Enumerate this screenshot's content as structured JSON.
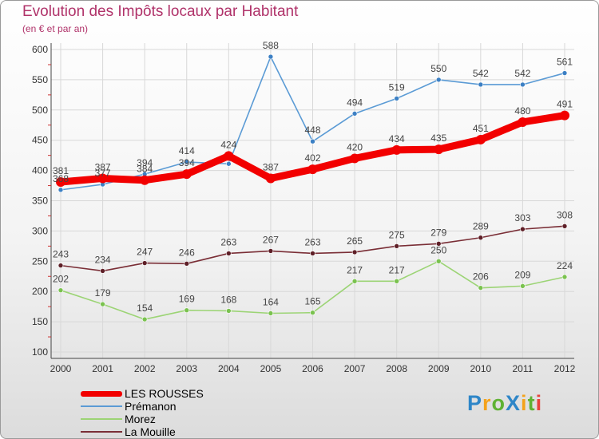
{
  "title": "Evolution des Impôts locaux par Habitant",
  "subtitle": "(en € et par an)",
  "logo": {
    "text": "ProXiti",
    "letter_colors": [
      "#2e86c8",
      "#f4a21a",
      "#5fb233",
      "#2e86c8",
      "#f4a21a",
      "#5fb233",
      "#e8433c"
    ]
  },
  "chart_data": {
    "type": "line",
    "x": [
      "2000",
      "2001",
      "2002",
      "2003",
      "2004",
      "2005",
      "2006",
      "2007",
      "2008",
      "2009",
      "2010",
      "2011",
      "2012"
    ],
    "ylim": [
      100,
      600
    ],
    "yticks": [
      100,
      150,
      200,
      250,
      300,
      350,
      400,
      450,
      500,
      550,
      600
    ],
    "grid": true,
    "legend_position": "bottom-left",
    "series": [
      {
        "name": "Prémanon",
        "color": "#5b9bd5",
        "marker": "#3c80c4",
        "values": [
          368,
          377,
          394,
          414,
          411,
          588,
          448,
          494,
          519,
          550,
          542,
          542,
          561
        ],
        "labels": [
          368,
          377,
          394,
          414,
          null,
          588,
          448,
          494,
          519,
          550,
          542,
          542,
          561
        ]
      },
      {
        "name": "Morez",
        "color": "#9cd475",
        "marker": "#7ac24f",
        "values": [
          202,
          179,
          154,
          169,
          168,
          164,
          165,
          217,
          217,
          250,
          206,
          209,
          224
        ]
      },
      {
        "name": "La Mouille",
        "color": "#7a2e36",
        "marker": "#5e1f27",
        "values": [
          243,
          234,
          247,
          246,
          263,
          267,
          263,
          265,
          275,
          279,
          289,
          303,
          308
        ]
      },
      {
        "name": "LES ROUSSES",
        "color": "#f20000",
        "marker": "#f20000",
        "values": [
          381,
          387,
          384,
          394,
          424,
          387,
          402,
          420,
          434,
          435,
          451,
          480,
          491
        ]
      }
    ]
  },
  "legend": [
    {
      "name": "LES ROUSSES",
      "color": "#f20000",
      "thickness": 7
    },
    {
      "name": "Prémanon",
      "color": "#5b9bd5",
      "thickness": 2
    },
    {
      "name": "Morez",
      "color": "#9cd475",
      "thickness": 2
    },
    {
      "name": "La Mouille",
      "color": "#7a2e36",
      "thickness": 2
    }
  ]
}
